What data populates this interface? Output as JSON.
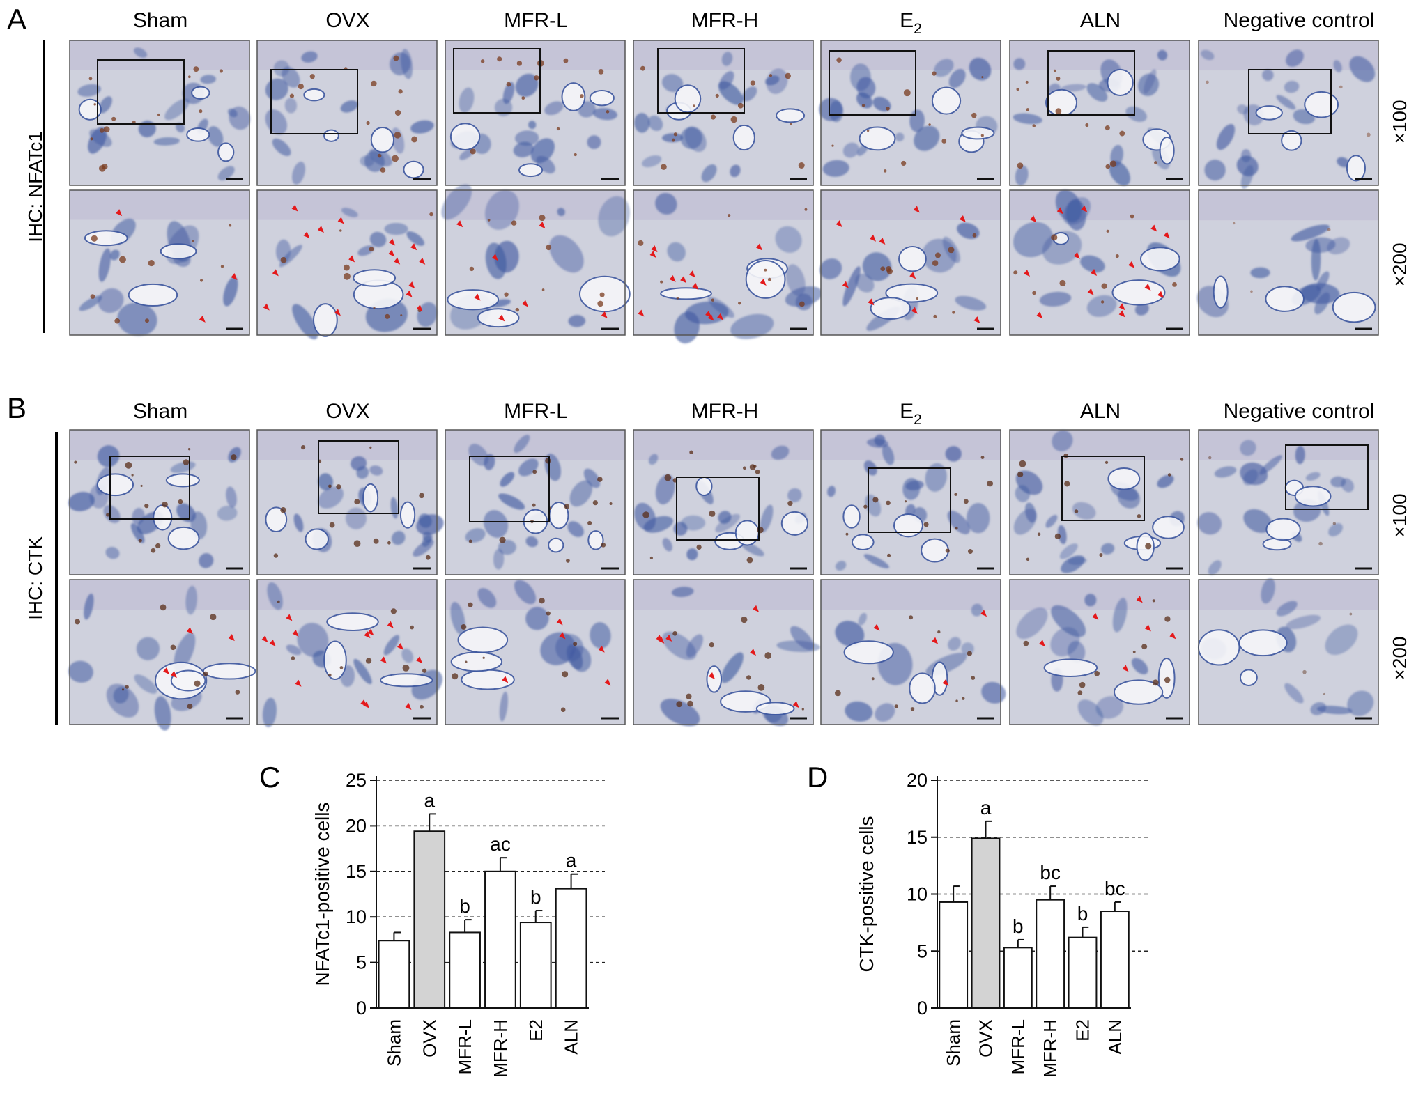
{
  "panels": {
    "A": {
      "letter": "A",
      "side_label": "IHC: NFATc1",
      "groups": [
        "Sham",
        "OVX",
        "MFR-L",
        "MFR-H",
        "E",
        "ALN",
        "Negative control"
      ],
      "magnifications": [
        "×100",
        "×200"
      ],
      "stain_color": "#7a3b1e",
      "tissue_color": "#3e58a0",
      "arrow_color": "#e4191b",
      "arrow_counts": [
        3,
        16,
        7,
        12,
        10,
        15,
        0
      ]
    },
    "B": {
      "letter": "B",
      "side_label": "IHC: CTK",
      "groups": [
        "Sham",
        "OVX",
        "MFR-L",
        "MFR-H",
        "E",
        "ALN",
        "Negative control"
      ],
      "magnifications": [
        "×100",
        "×200"
      ],
      "stain_color": "#5a2e18",
      "tissue_color": "#3e58a0",
      "arrow_color": "#e4191b",
      "arrow_counts": [
        4,
        14,
        5,
        7,
        4,
        6,
        0
      ]
    }
  },
  "e2_subscript": "2",
  "chart_data": [
    {
      "letter": "C",
      "type": "bar",
      "categories": [
        "Sham",
        "OVX",
        "MFR-L",
        "MFR-H",
        "E2",
        "ALN"
      ],
      "values": [
        7.4,
        19.4,
        8.3,
        15.0,
        9.4,
        13.1
      ],
      "errors": [
        0.9,
        1.9,
        1.4,
        1.5,
        1.3,
        1.6
      ],
      "sig_labels": [
        "",
        "a",
        "b",
        "ac",
        "b",
        "a"
      ],
      "highlight_index": 1,
      "highlight_color": "#d3d3d3",
      "ylabel": "NFATc1-positive cells",
      "ylim": [
        0,
        25
      ],
      "yticks": [
        0,
        5,
        10,
        15,
        20,
        25
      ],
      "grid": "dashed horizontal"
    },
    {
      "letter": "D",
      "type": "bar",
      "categories": [
        "Sham",
        "OVX",
        "MFR-L",
        "MFR-H",
        "E2",
        "ALN"
      ],
      "values": [
        9.3,
        14.9,
        5.3,
        9.5,
        6.2,
        8.5
      ],
      "errors": [
        1.4,
        1.5,
        0.7,
        1.2,
        0.9,
        0.8
      ],
      "sig_labels": [
        "",
        "a",
        "b",
        "bc",
        "b",
        "bc"
      ],
      "highlight_index": 1,
      "highlight_color": "#d3d3d3",
      "ylabel": "CTK-positive cells",
      "ylim": [
        0,
        20
      ],
      "yticks": [
        0,
        5,
        10,
        15,
        20
      ],
      "grid": "dashed horizontal"
    }
  ]
}
